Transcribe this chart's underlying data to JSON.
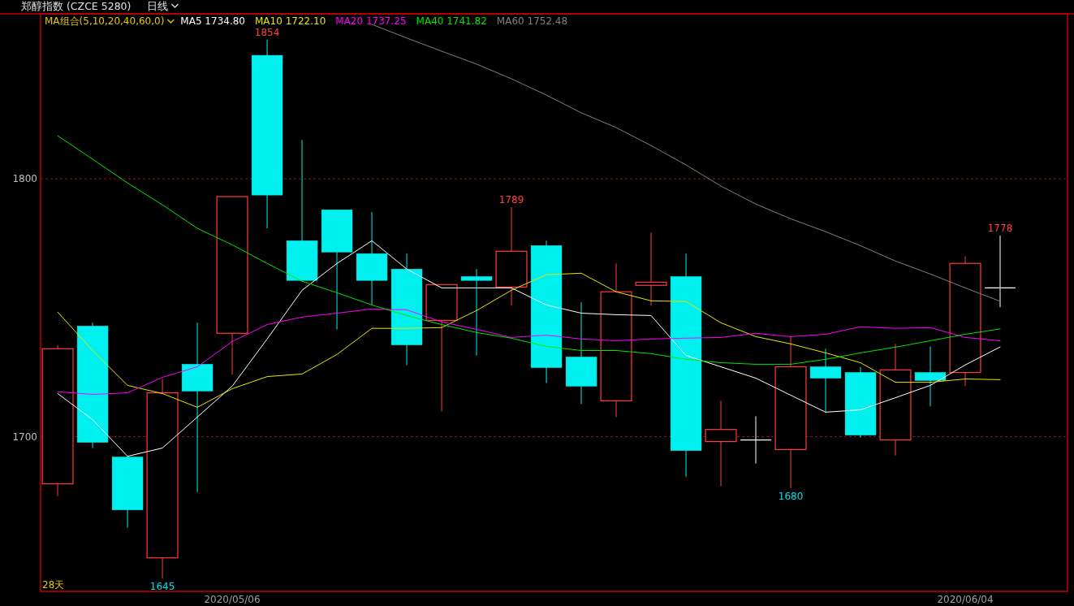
{
  "chart_data": {
    "type": "candlestick",
    "title": "郑醇指数 (CZCE 5280)",
    "subtitle": "日线",
    "legend_title": "MA组合(5,10,20,40,60,0)",
    "legend": "top left",
    "grid": "y",
    "categories": [
      null,
      null,
      null,
      null,
      null,
      "2020/05/06",
      null,
      null,
      null,
      null,
      null,
      null,
      null,
      null,
      null,
      null,
      null,
      null,
      null,
      null,
      null,
      null,
      null,
      null,
      null,
      null,
      "2020/06/04",
      null
    ],
    "ylim": [
      1640,
      1864
    ],
    "yticks": [
      1700,
      1800
    ],
    "ohlc": [
      [
        1681.7,
        1735.6,
        1677.0,
        1734.1
      ],
      [
        1742.9,
        1744.2,
        1695.6,
        1697.8
      ],
      [
        1692.1,
        1692.7,
        1664.7,
        1671.6
      ],
      [
        1653.0,
        1722.4,
        1645,
        1717.0
      ],
      [
        1728.1,
        1744.2,
        1678.5,
        1717.7
      ],
      [
        1740.1,
        1793.1,
        1724.0,
        1793.1
      ],
      [
        1847.9,
        1854,
        1780.8,
        1793.7
      ],
      [
        1776.0,
        1815.1,
        1760.6,
        1760.6
      ],
      [
        1788.0,
        1788.0,
        1741.6,
        1771.6
      ],
      [
        1771.0,
        1787.1,
        1751.1,
        1760.6
      ],
      [
        1765.0,
        1771.0,
        1727.8,
        1735.6
      ],
      [
        1745.1,
        1759.0,
        1709.8,
        1759.0
      ],
      [
        1762.1,
        1765.0,
        1731.5,
        1760.6
      ],
      [
        1758.0,
        1789,
        1750.8,
        1771.9
      ],
      [
        1774.1,
        1776.0,
        1720.8,
        1726.8
      ],
      [
        1730.9,
        1752.1,
        1712.6,
        1719.6
      ],
      [
        1713.9,
        1767.2,
        1707.6,
        1756.2
      ],
      [
        1758.7,
        1779.2,
        1750.8,
        1759.9
      ],
      [
        1762.1,
        1771.0,
        1684.5,
        1694.6
      ],
      [
        1698.1,
        1713.9,
        1680.8,
        1702.8
      ],
      [
        1698.7,
        1707.9,
        1689.6,
        1698.7
      ],
      [
        1695.0,
        1739.1,
        1680,
        1727.1
      ],
      [
        1727.1,
        1734.1,
        1709.5,
        1722.7
      ],
      [
        1724.9,
        1727.1,
        1699.7,
        1700.6
      ],
      [
        1698.7,
        1736.0,
        1692.7,
        1725.9
      ],
      [
        1724.9,
        1735.0,
        1711.7,
        1721.8
      ],
      [
        1724.9,
        1770.0,
        1719.6,
        1767.2
      ],
      [
        1757.7,
        1778,
        1750.2,
        1757.7
      ]
    ],
    "colors": [
      "#ff3c3c",
      "#00f0f0",
      "#00f0f0",
      "#ff3c3c",
      "#00f0f0",
      "#ff3c3c",
      "#00f0f0",
      "#00f0f0",
      "#00f0f0",
      "#00f0f0",
      "#00f0f0",
      "#ff3c3c",
      "#00f0f0",
      "#ff3c3c",
      "#00f0f0",
      "#00f0f0",
      "#ff3c3c",
      "#ff3c3c",
      "#00f0f0",
      "#ff3c3c",
      "#ffffff",
      "#ff3c3c",
      "#00f0f0",
      "#00f0f0",
      "#ff3c3c",
      "#00f0f0",
      "#ff3c3c",
      "#ffffff"
    ],
    "series": [
      {
        "name": "MA5 1734.80",
        "type": "line",
        "color": "#ffffff",
        "values": [
          1716.7,
          1706.6,
          1692.4,
          1695.6,
          1707.6,
          1719.6,
          1737.9,
          1756.8,
          1767.2,
          1776.0,
          1765.0,
          1757.7,
          1757.7,
          1757.7,
          1751.1,
          1747.9,
          1747.3,
          1747.0,
          1731.5,
          1727.1,
          1722.7,
          1716.1,
          1709.5,
          1710.4,
          1715.1,
          1719.9,
          1727.8,
          1734.8
        ]
      },
      {
        "name": "MA10 1722.10",
        "type": "line",
        "color": "#e6e600",
        "values": [
          1748.3,
          1733.4,
          1719.9,
          1716.7,
          1711.4,
          1718.6,
          1723.3,
          1724.3,
          1731.9,
          1742.0,
          1742.0,
          1742.3,
          1748.9,
          1756.8,
          1762.8,
          1763.4,
          1756.2,
          1752.7,
          1752.4,
          1744.2,
          1738.8,
          1736.0,
          1732.5,
          1728.7,
          1721.1,
          1721.1,
          1722.4,
          1722.1
        ]
      },
      {
        "name": "MA20 1737.25",
        "type": "line",
        "color": "#ff00ff",
        "values": [
          1717.4,
          1716.4,
          1717.0,
          1723.0,
          1727.1,
          1736.9,
          1743.5,
          1746.4,
          1747.9,
          1749.5,
          1749.2,
          1744.5,
          1741.6,
          1738.5,
          1739.4,
          1737.9,
          1737.2,
          1737.9,
          1738.2,
          1738.5,
          1740.1,
          1738.8,
          1739.7,
          1742.6,
          1742.0,
          1742.3,
          1738.5,
          1737.2
        ]
      },
      {
        "name": "MA40 1741.82",
        "type": "line",
        "color": "#00e600",
        "values": [
          1816.7,
          1807.6,
          1798.4,
          1789.9,
          1780.8,
          1774.4,
          1767.2,
          1760.3,
          1755.8,
          1751.1,
          1747.0,
          1743.5,
          1740.4,
          1738.2,
          1735.0,
          1733.4,
          1733.4,
          1732.2,
          1730.0,
          1728.7,
          1728.1,
          1728.1,
          1730.0,
          1732.5,
          1734.7,
          1737.2,
          1739.7,
          1741.8
        ]
      },
      {
        "name": "MA60 1752.48",
        "type": "line",
        "color": "#808080",
        "values": [
          null,
          null,
          null,
          null,
          null,
          null,
          null,
          null,
          null,
          1859.9,
          1854.6,
          1849.5,
          1844.5,
          1838.8,
          1832.5,
          1825.6,
          1819.9,
          1812.9,
          1805.4,
          1797.2,
          1790.2,
          1784.5,
          1779.5,
          1774.1,
          1768.1,
          1763.1,
          1757.7,
          1752.5
        ]
      }
    ],
    "annotations": [
      "28天",
      {
        "text": "1854",
        "y": 1854
      },
      {
        "text": "1789",
        "y": 1789
      },
      {
        "text": "1778",
        "y": 1778
      },
      {
        "text": "1645",
        "y": 1645
      },
      {
        "text": "1680",
        "y": 1680
      }
    ]
  }
}
